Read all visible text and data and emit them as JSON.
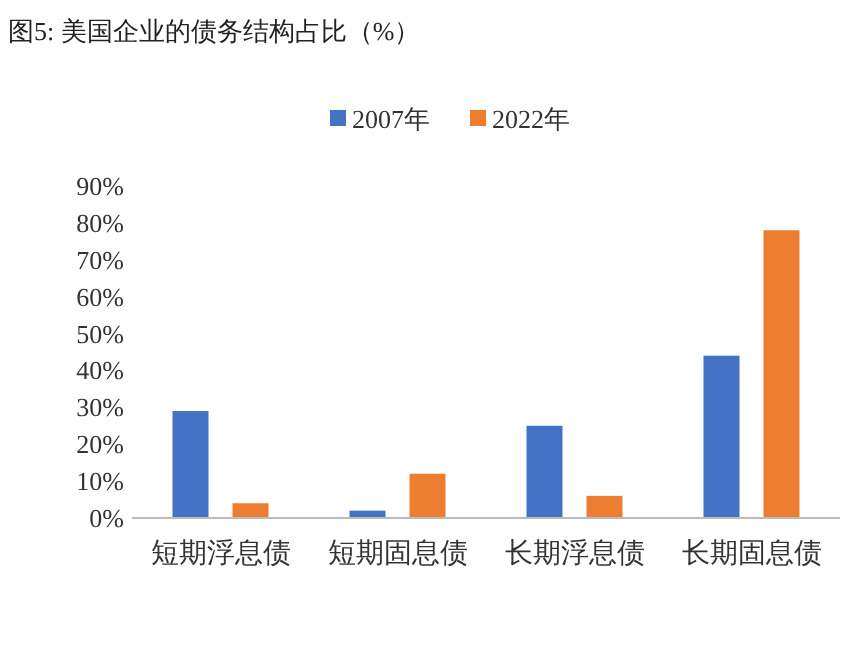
{
  "chart_data": {
    "type": "bar",
    "title": "图5:   美国企业的债务结构占比（%）",
    "categories": [
      "短期浮息债",
      "短期固息债",
      "长期浮息债",
      "长期固息债"
    ],
    "series": [
      {
        "name": "2007年",
        "color": "#4472c4",
        "values": [
          29,
          2,
          25,
          44
        ]
      },
      {
        "name": "2022年",
        "color": "#ed7d31",
        "values": [
          4,
          12,
          6,
          78
        ]
      }
    ],
    "ylim": [
      0,
      90
    ],
    "yticks": [
      {
        "value": 0,
        "label": "0%"
      },
      {
        "value": 10,
        "label": "10%"
      },
      {
        "value": 20,
        "label": "20%"
      },
      {
        "value": 30,
        "label": "30%"
      },
      {
        "value": 40,
        "label": "40%"
      },
      {
        "value": 50,
        "label": "50%"
      },
      {
        "value": 60,
        "label": "60%"
      },
      {
        "value": 70,
        "label": "70%"
      },
      {
        "value": 80,
        "label": "80%"
      },
      {
        "value": 90,
        "label": "90%"
      }
    ],
    "legend": "top",
    "grid": false
  }
}
